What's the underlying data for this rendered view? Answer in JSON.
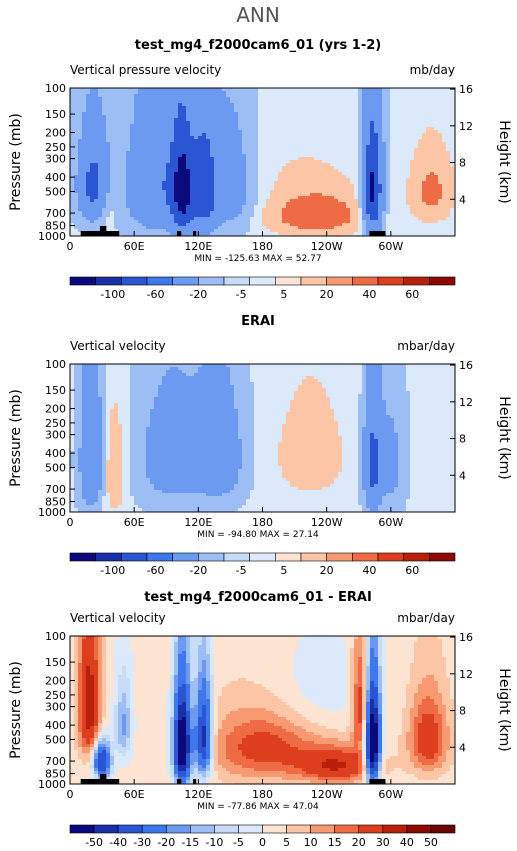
{
  "page": {
    "title": "ANN"
  },
  "chart_data": [
    {
      "type": "heatmap",
      "title": "test_mg4_f2000cam6_01 (yrs 1-2)",
      "left_label": "Vertical pressure velocity",
      "right_label": "mb/day",
      "ylabel": "Pressure (mb)",
      "ylabel_right": "Height (km)",
      "x_ticks": [
        "0",
        "60E",
        "120E",
        "180",
        "120W",
        "60W"
      ],
      "y_ticks": [
        "100",
        "150",
        "200",
        "250",
        "300",
        "400",
        "500",
        "700",
        "850",
        "1000"
      ],
      "y_ticks_right": [
        "16",
        "12",
        "8",
        "4"
      ],
      "min_max_text": "MIN = -125.63   MAX = 52.77",
      "levels": [
        "-100",
        "-60",
        "-20",
        "-5",
        "5",
        "20",
        "40",
        "60"
      ],
      "colors": [
        "#0a0a7d",
        "#1b2fa8",
        "#2a56d4",
        "#3f78ec",
        "#6b9af0",
        "#9dbdf5",
        "#c6dcf8",
        "#dce9fb",
        "#fde4d2",
        "#fbc5a6",
        "#f79a72",
        "#ef6b45",
        "#dd3f1e",
        "#b8200c",
        "#8b0a02"
      ],
      "blobs": [
        {
          "lon": 22,
          "lev": 450,
          "wlon": 14,
          "wlev": 300,
          "v": -70
        },
        {
          "lon": 35,
          "lev": 600,
          "wlon": 8,
          "wlev": 250,
          "v": 15
        },
        {
          "lon": 82,
          "lev": 450,
          "wlon": 28,
          "wlev": 420,
          "v": -55
        },
        {
          "lon": 105,
          "lev": 500,
          "wlon": 10,
          "wlev": 400,
          "v": -95
        },
        {
          "lon": 125,
          "lev": 480,
          "wlon": 12,
          "wlev": 380,
          "v": -80
        },
        {
          "lon": 150,
          "lev": 450,
          "wlon": 22,
          "wlev": 400,
          "v": -35
        },
        {
          "lon": 230,
          "lev": 720,
          "wlon": 45,
          "wlev": 250,
          "v": 40
        },
        {
          "lon": 210,
          "lev": 300,
          "wlon": 70,
          "wlev": 200,
          "v": 6
        },
        {
          "lon": 283,
          "lev": 500,
          "wlon": 9,
          "wlev": 420,
          "v": -110
        },
        {
          "lon": 338,
          "lev": 500,
          "wlon": 20,
          "wlev": 280,
          "v": 28
        }
      ]
    },
    {
      "type": "heatmap",
      "title": "ERAI",
      "left_label": "Vertical velocity",
      "right_label": "mbar/day",
      "ylabel": "Pressure (mb)",
      "ylabel_right": "Height (km)",
      "x_ticks": [
        "0",
        "60E",
        "120E",
        "180",
        "120W",
        "60W"
      ],
      "y_ticks": [
        "100",
        "150",
        "200",
        "250",
        "300",
        "400",
        "500",
        "700",
        "850",
        "1000"
      ],
      "y_ticks_right": [
        "16",
        "12",
        "8",
        "4"
      ],
      "min_max_text": "MIN = -94.80   MAX = 27.14",
      "levels": [
        "-100",
        "-60",
        "-20",
        "-5",
        "5",
        "20",
        "40",
        "60"
      ],
      "colors": [
        "#0a0a7d",
        "#1b2fa8",
        "#2a56d4",
        "#3f78ec",
        "#6b9af0",
        "#9dbdf5",
        "#c6dcf8",
        "#dce9fb",
        "#fde4d2",
        "#fbc5a6",
        "#f79a72",
        "#ef6b45",
        "#dd3f1e",
        "#b8200c",
        "#8b0a02"
      ],
      "blobs": [
        {
          "lon": 20,
          "lev": 450,
          "wlon": 10,
          "wlev": 420,
          "v": -55
        },
        {
          "lon": 42,
          "lev": 550,
          "wlon": 10,
          "wlev": 400,
          "v": 22
        },
        {
          "lon": 95,
          "lev": 430,
          "wlon": 30,
          "wlev": 380,
          "v": -35
        },
        {
          "lon": 140,
          "lev": 420,
          "wlon": 22,
          "wlev": 360,
          "v": -40
        },
        {
          "lon": 225,
          "lev": 420,
          "wlon": 40,
          "wlev": 400,
          "v": 14
        },
        {
          "lon": 283,
          "lev": 480,
          "wlon": 8,
          "wlev": 420,
          "v": -70
        },
        {
          "lon": 300,
          "lev": 480,
          "wlon": 12,
          "wlev": 400,
          "v": -25
        },
        {
          "lon": 345,
          "lev": 450,
          "wlon": 15,
          "wlev": 300,
          "v": 8
        }
      ]
    },
    {
      "type": "heatmap",
      "title": "test_mg4_f2000cam6_01 - ERAI",
      "left_label": "Vertical velocity",
      "right_label": "mbar/day",
      "ylabel": "Pressure (mb)",
      "ylabel_right": "Height (km)",
      "x_ticks": [
        "0",
        "60E",
        "120E",
        "180",
        "120W",
        "60W"
      ],
      "y_ticks": [
        "100",
        "150",
        "200",
        "250",
        "300",
        "400",
        "500",
        "700",
        "850",
        "1000"
      ],
      "y_ticks_right": [
        "16",
        "12",
        "8",
        "4"
      ],
      "min_max_text": "MIN = -77.86   MAX = 47.04",
      "levels": [
        "-50",
        "-40",
        "-30",
        "-20",
        "-15",
        "-10",
        "-5",
        "0",
        "5",
        "10",
        "15",
        "20",
        "30",
        "40",
        "50"
      ],
      "colors": [
        "#0a0a7d",
        "#1b2fa8",
        "#2a56d4",
        "#3f78ec",
        "#6b9af0",
        "#9dbdf5",
        "#c6dcf8",
        "#dce9fb",
        "#fde4d2",
        "#fbc5a6",
        "#f79a72",
        "#ef6b45",
        "#dd3f1e",
        "#b8200c",
        "#8b0a02",
        "#6a0600"
      ],
      "blobs": [
        {
          "lon": 18,
          "lev": 300,
          "wlon": 10,
          "wlev": 300,
          "v": 35
        },
        {
          "lon": 30,
          "lev": 700,
          "wlon": 8,
          "wlev": 200,
          "v": -45
        },
        {
          "lon": 50,
          "lev": 400,
          "wlon": 8,
          "wlev": 250,
          "v": -18
        },
        {
          "lon": 105,
          "lev": 550,
          "wlon": 8,
          "wlev": 400,
          "v": -70
        },
        {
          "lon": 125,
          "lev": 500,
          "wlon": 8,
          "wlev": 350,
          "v": -50
        },
        {
          "lon": 180,
          "lev": 550,
          "wlon": 50,
          "wlev": 350,
          "v": 22
        },
        {
          "lon": 250,
          "lev": 750,
          "wlon": 35,
          "wlev": 200,
          "v": 28
        },
        {
          "lon": 283,
          "lev": 550,
          "wlon": 7,
          "wlev": 400,
          "v": -75
        },
        {
          "lon": 272,
          "lev": 300,
          "wlon": 8,
          "wlev": 250,
          "v": 25
        },
        {
          "lon": 335,
          "lev": 500,
          "wlon": 18,
          "wlev": 300,
          "v": 25
        },
        {
          "lon": 210,
          "lev": 250,
          "wlon": 60,
          "wlev": 200,
          "v": -8
        }
      ]
    }
  ]
}
